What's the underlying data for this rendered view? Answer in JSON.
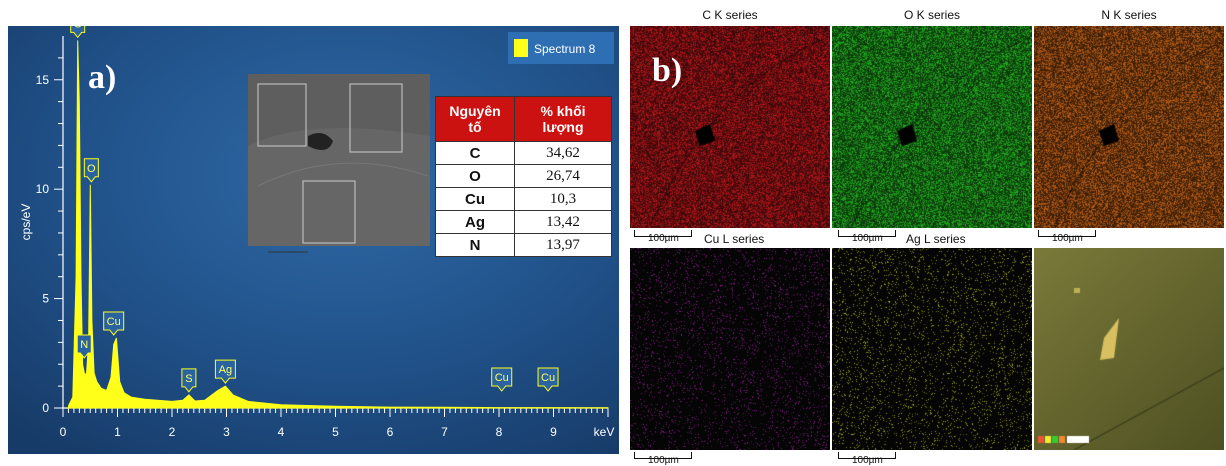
{
  "panel_a": {
    "label": "a)",
    "inset_labels": [
      "Spectrum 6"
    ],
    "table": {
      "headers": [
        "Nguyên tố",
        "% khối lượng"
      ],
      "rows": [
        {
          "element": "C",
          "value": "34,62"
        },
        {
          "element": "O",
          "value": "26,74"
        },
        {
          "element": "Cu",
          "value": "10,3"
        },
        {
          "element": "Ag",
          "value": "13,42"
        },
        {
          "element": "N",
          "value": "13,97"
        }
      ]
    }
  },
  "panel_b": {
    "label": "b)",
    "maps": [
      {
        "title": "C K series",
        "color": "#b0161a",
        "scale": "100µm"
      },
      {
        "title": "O K series",
        "color": "#21a61f",
        "scale": "100µm"
      },
      {
        "title": "N K series",
        "color": "#b35a15",
        "scale": "100µm"
      },
      {
        "title": "Cu L series",
        "color": "#7a1f7a",
        "scale": "100µm"
      },
      {
        "title": "Ag L series",
        "color": "#9ca41a",
        "scale": "100µm"
      },
      {
        "title": "",
        "color": "#6b6a2a",
        "scale": ""
      }
    ],
    "bottom_scales": [
      "100µm",
      "100µm"
    ]
  },
  "chart_data": {
    "type": "line",
    "title": "",
    "legend": [
      "Spectrum 8"
    ],
    "xlabel": "keV",
    "ylabel": "cps/eV",
    "xlim": [
      0,
      10
    ],
    "ylim": [
      0,
      17
    ],
    "x_ticks": [
      0,
      1,
      2,
      3,
      4,
      5,
      6,
      7,
      8,
      9
    ],
    "y_ticks": [
      0,
      5,
      10,
      15
    ],
    "y_tick_labels": [
      "0",
      "5",
      "10",
      "15"
    ],
    "series": [
      {
        "name": "Spectrum 8",
        "color": "#ffff1a",
        "x": [
          0.1,
          0.18,
          0.24,
          0.27,
          0.3,
          0.33,
          0.36,
          0.39,
          0.43,
          0.47,
          0.5,
          0.53,
          0.57,
          0.62,
          0.7,
          0.8,
          0.88,
          0.93,
          0.98,
          1.04,
          1.12,
          1.25,
          1.5,
          2.0,
          2.2,
          2.31,
          2.42,
          2.6,
          2.84,
          2.98,
          3.12,
          3.4,
          4.0,
          5.0,
          6.0,
          7.0,
          8.0,
          9.0,
          10.0
        ],
        "y": [
          0.1,
          0.5,
          6.0,
          16.8,
          14.0,
          6.0,
          2.0,
          1.6,
          1.5,
          3.0,
          10.2,
          4.0,
          1.6,
          1.2,
          0.9,
          0.8,
          1.4,
          2.9,
          3.2,
          1.2,
          0.7,
          0.5,
          0.4,
          0.3,
          0.35,
          0.6,
          0.32,
          0.35,
          0.8,
          1.0,
          0.6,
          0.3,
          0.15,
          0.08,
          0.04,
          0.03,
          0.02,
          0.02,
          0.01
        ]
      }
    ],
    "peak_labels": [
      {
        "label": "C",
        "x": 0.27,
        "y": 16.8
      },
      {
        "label": "N",
        "x": 0.39,
        "y": 1.6
      },
      {
        "label": "O",
        "x": 0.52,
        "y": 10.2
      },
      {
        "label": "Cu",
        "x": 0.93,
        "y": 3.2
      },
      {
        "label": "S",
        "x": 2.31,
        "y": 0.6
      },
      {
        "label": "Ag",
        "x": 2.98,
        "y": 1.0
      },
      {
        "label": "Cu",
        "x": 8.05,
        "y": 0.02
      },
      {
        "label": "Cu",
        "x": 8.9,
        "y": 0.02
      }
    ]
  }
}
